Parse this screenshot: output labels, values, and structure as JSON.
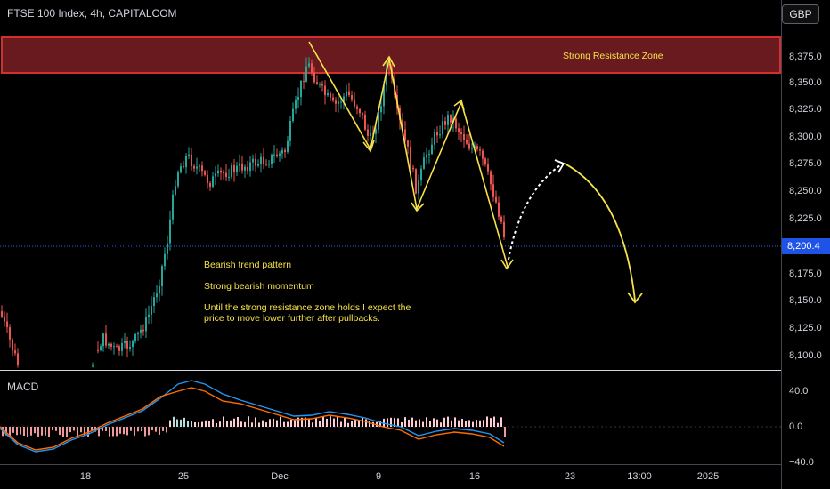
{
  "header": {
    "title": "FTSE 100 Index, 4h, CAPITALCOM",
    "currency": "GBP"
  },
  "annotations": {
    "resistance_zone": "Strong Resistance Zone",
    "line1": "Bearish trend pattern",
    "line2": "Strong bearish momentum",
    "line3a": "Until the strong resistance zone holds I expect the",
    "line3b": "price to move lower further after pullbacks."
  },
  "price_axis": {
    "labels": [
      "8,375.0",
      "8,350.0",
      "8,325.0",
      "8,300.0",
      "8,275.0",
      "8,250.0",
      "8,225.0",
      "8,175.0",
      "8,150.0",
      "8,125.0",
      "8,100.0"
    ],
    "current_price": "8,200.4"
  },
  "macd": {
    "label": "MACD",
    "axis_labels": [
      "40.0",
      "0.0",
      "−40.0"
    ]
  },
  "time_axis": {
    "labels": [
      "18",
      "25",
      "Dec",
      "9",
      "16",
      "23",
      "13:00",
      "2025"
    ]
  },
  "colors": {
    "up": "#26a69a",
    "down": "#ef5350",
    "resistance_fill": "#7a1e24",
    "resistance_border": "#d32f2f",
    "annotation": "#f7e24a",
    "macd_line": "#2196f3",
    "signal_line": "#ff6d00",
    "price_line": "#2962ff"
  }
}
